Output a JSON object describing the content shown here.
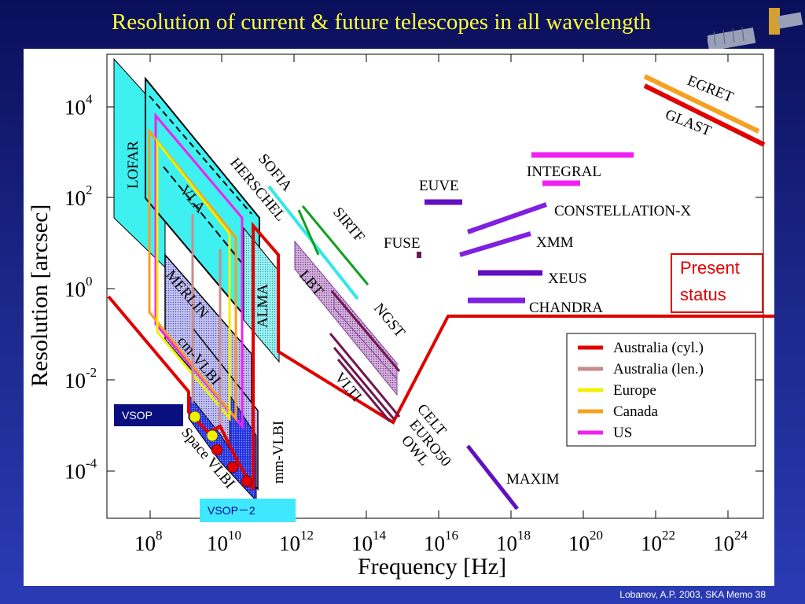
{
  "slide": {
    "title": "Resolution of current & future telescopes in all wavelength",
    "credit": "Lobanov, A.P. 2003, SKA Memo 38",
    "present_status_line1": "Present",
    "present_status_line2": "status",
    "vsop1": "VSOP",
    "vsop2": "VSOP－2"
  },
  "chart_data": {
    "type": "line",
    "title": "",
    "xlabel": "Frequency [Hz]",
    "ylabel": "Resolution [arcsec]",
    "xscale": "log",
    "yscale": "log",
    "xlim": [
      10000000.0,
      1e+25
    ],
    "ylim": [
      3e-06,
      100000.0
    ],
    "x_ticks": [
      {
        "base": "10",
        "exp": "8",
        "value": 8
      },
      {
        "base": "10",
        "exp": "10",
        "value": 10
      },
      {
        "base": "10",
        "exp": "12",
        "value": 12
      },
      {
        "base": "10",
        "exp": "14",
        "value": 14
      },
      {
        "base": "10",
        "exp": "16",
        "value": 16
      },
      {
        "base": "10",
        "exp": "18",
        "value": 18
      },
      {
        "base": "10",
        "exp": "20",
        "value": 20
      },
      {
        "base": "10",
        "exp": "22",
        "value": 22
      },
      {
        "base": "10",
        "exp": "24",
        "value": 24
      }
    ],
    "y_ticks": [
      {
        "base": "10",
        "exp": "4",
        "value": 4
      },
      {
        "base": "10",
        "exp": "2",
        "value": 2
      },
      {
        "base": "10",
        "exp": "0",
        "value": 0
      },
      {
        "base": "10",
        "exp": "-2",
        "value": -2
      },
      {
        "base": "10",
        "exp": "-4",
        "value": -4
      }
    ],
    "legend": {
      "position": "right",
      "entries": [
        {
          "name": "Australia (cyl.)",
          "color": "#e00000"
        },
        {
          "name": "Australia (len.)",
          "color": "#c88c8c"
        },
        {
          "name": "Europe",
          "color": "#f0f000"
        },
        {
          "name": "Canada",
          "color": "#f5a020"
        },
        {
          "name": "US",
          "color": "#f020f0"
        }
      ]
    },
    "instrument_labels": [
      "LOFAR",
      "VLA",
      "MERLIN",
      "cm-VLBI",
      "Space VLBI",
      "mm-VLBI",
      "ALMA",
      "SOFIA",
      "HERSCHEL",
      "SIRTF",
      "LBT",
      "NGST",
      "VLTI",
      "CELT",
      "EURO50",
      "OWL",
      "FUSE",
      "EUVE",
      "INTEGRAL",
      "CONSTELLATION-X",
      "XMM",
      "XEUS",
      "CHANDRA",
      "MAXIM",
      "EGRET",
      "GLAST"
    ],
    "colors": {
      "lofar": "#3ff0f0",
      "cyl": "#e00000",
      "ir": "#c88cc8",
      "xray": "#8020e0",
      "dark_violet": "#6010c0"
    }
  }
}
